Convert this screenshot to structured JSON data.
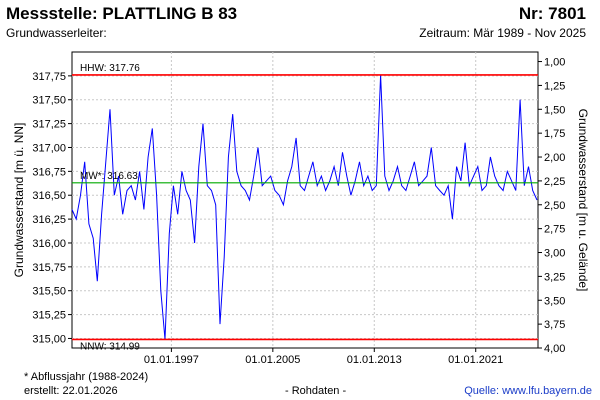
{
  "header": {
    "title": "Messstelle: PLATTLING B 83",
    "station_nr": "Nr: 7801",
    "aquifer": "Grundwasserleiter:",
    "period": "Zeitraum: Mär 1989 - Nov 2025"
  },
  "footer": {
    "footnote": "* Abflussjahr (1988-2024)",
    "created": "erstellt:   22.01.2026",
    "raw": "- Rohdaten -",
    "source": "Quelle: www.lfu.bayern.de"
  },
  "colors": {
    "series": "#0000ff",
    "hhw": "#ff0000",
    "nnw": "#ff0000",
    "mw": "#00aa00",
    "grid": "#c8c8c8"
  },
  "chart_data": {
    "type": "line",
    "ylabel": "Grundwasserstand [m ü. NN]",
    "y2label": "Grundwasserstand [m u. Gelände]",
    "ylim": [
      314.9,
      318.0
    ],
    "y2lim": [
      4.0,
      0.9
    ],
    "xlim": [
      "1989-03-01",
      "2025-11-30"
    ],
    "x_ticks": [
      "01.01.1997",
      "01.01.2005",
      "01.01.2013",
      "01.01.2021"
    ],
    "y_ticks": [
      "315,00",
      "315,25",
      "315,50",
      "315,75",
      "316,00",
      "316,25",
      "316,50",
      "316,75",
      "317,00",
      "317,25",
      "317,50",
      "317,75"
    ],
    "y2_ticks": [
      "1,00",
      "1,25",
      "1,50",
      "1,75",
      "2,00",
      "2,25",
      "2,50",
      "2,75",
      "3,00",
      "3,25",
      "3,50",
      "3,75",
      "4,00"
    ],
    "grid": true,
    "reference_lines": [
      {
        "label": "HHW: 317.76",
        "value": 317.76
      },
      {
        "label": "MW*: 316.63",
        "value": 316.63
      },
      {
        "label": "NNW: 314.99",
        "value": 314.99
      }
    ],
    "series": [
      {
        "x": [
          "1989-03-01",
          "1989-07-01",
          "1989-11-01",
          "1990-03-01",
          "1990-07-01",
          "1990-11-01",
          "1991-03-01",
          "1991-07-01",
          "1991-11-01",
          "1992-03-01",
          "1992-07-01",
          "1992-11-01",
          "1993-03-01",
          "1993-07-01",
          "1993-11-01",
          "1994-03-01",
          "1994-07-01",
          "1994-11-01",
          "1995-03-01",
          "1995-07-01",
          "1995-11-01",
          "1996-03-01",
          "1996-07-01",
          "1996-11-01",
          "1997-03-01",
          "1997-07-01",
          "1997-11-01",
          "1998-03-01",
          "1998-07-01",
          "1998-11-01",
          "1999-03-01",
          "1999-07-01",
          "1999-11-01",
          "2000-03-01",
          "2000-07-01",
          "2000-11-01",
          "2001-03-01",
          "2001-07-01",
          "2001-11-01",
          "2002-03-01",
          "2002-07-01",
          "2002-11-01",
          "2003-03-01",
          "2003-07-01",
          "2003-11-01",
          "2004-03-01",
          "2004-07-01",
          "2004-11-01",
          "2005-03-01",
          "2005-07-01",
          "2005-11-01",
          "2006-03-01",
          "2006-07-01",
          "2006-11-01",
          "2007-03-01",
          "2007-07-01",
          "2007-11-01",
          "2008-03-01",
          "2008-07-01",
          "2008-11-01",
          "2009-03-01",
          "2009-07-01",
          "2009-11-01",
          "2010-03-01",
          "2010-07-01",
          "2010-11-01",
          "2011-03-01",
          "2011-07-01",
          "2011-11-01",
          "2012-03-01",
          "2012-07-01",
          "2012-11-01",
          "2013-03-01",
          "2013-07-01",
          "2013-11-01",
          "2014-03-01",
          "2014-07-01",
          "2014-11-01",
          "2015-03-01",
          "2015-07-01",
          "2015-11-01",
          "2016-03-01",
          "2016-07-01",
          "2016-11-01",
          "2017-03-01",
          "2017-07-01",
          "2017-11-01",
          "2018-03-01",
          "2018-07-01",
          "2018-11-01",
          "2019-03-01",
          "2019-07-01",
          "2019-11-01",
          "2020-03-01",
          "2020-07-01",
          "2020-11-01",
          "2021-03-01",
          "2021-07-01",
          "2021-11-01",
          "2022-03-01",
          "2022-07-01",
          "2022-11-01",
          "2023-03-01",
          "2023-07-01",
          "2023-11-01",
          "2024-03-01",
          "2024-07-01",
          "2024-11-01",
          "2025-03-01",
          "2025-07-01",
          "2025-11-01"
        ],
        "values": [
          316.35,
          316.25,
          316.5,
          316.85,
          316.2,
          316.05,
          315.6,
          316.3,
          316.85,
          317.4,
          316.5,
          316.7,
          316.3,
          316.55,
          316.6,
          316.45,
          316.75,
          316.35,
          316.9,
          317.2,
          316.5,
          315.5,
          314.99,
          316.1,
          316.6,
          316.3,
          316.75,
          316.55,
          316.45,
          316.0,
          316.8,
          317.25,
          316.6,
          316.55,
          316.4,
          315.15,
          315.85,
          316.9,
          317.35,
          316.75,
          316.6,
          316.55,
          316.45,
          316.7,
          317.0,
          316.6,
          316.65,
          316.7,
          316.55,
          316.5,
          316.4,
          316.65,
          316.8,
          317.1,
          316.6,
          316.55,
          316.7,
          316.85,
          316.6,
          316.7,
          316.55,
          316.65,
          316.8,
          316.6,
          316.95,
          316.7,
          316.5,
          316.65,
          316.85,
          316.6,
          316.7,
          316.55,
          316.6,
          317.76,
          316.7,
          316.55,
          316.65,
          316.8,
          316.6,
          316.55,
          316.7,
          316.85,
          316.6,
          316.65,
          316.7,
          317.0,
          316.6,
          316.55,
          316.5,
          316.6,
          316.25,
          316.8,
          316.65,
          317.05,
          316.6,
          316.7,
          316.8,
          316.55,
          316.6,
          316.9,
          316.7,
          316.6,
          316.55,
          316.75,
          316.65,
          316.55,
          317.5,
          316.6,
          316.8,
          316.55,
          316.45
        ]
      }
    ]
  }
}
